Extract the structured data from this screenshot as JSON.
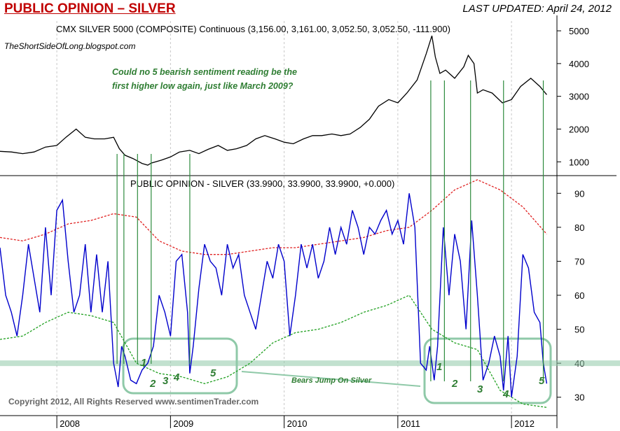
{
  "header": {
    "title": "PUBLIC OPINION – SILVER",
    "updated": "LAST UPDATED:  April 24, 2012"
  },
  "blog": "TheShortSideOfLong.blogspot.com",
  "question": "Could no 5 bearish sentiment reading be the\nfirst higher low again, just like March 2009?",
  "copyright": "Copyright 2012, All Rights Reserved  www.sentimenTrader.com",
  "bears_label": "Bears Jump On Silver",
  "colors": {
    "title": "#c00000",
    "price_line": "#000000",
    "sentiment_line": "#0000cc",
    "upper_band": "#e02020",
    "lower_band": "#20a020",
    "annotation": "#2e7d32",
    "highlight": "#8fc9a8"
  },
  "chart_data": [
    {
      "type": "line",
      "panel": "top",
      "title": "CMX SILVER 5000 (COMPOSITE) Continuous (3,156.00, 3,161.00, 3,052.50, 3,052.50, -111.900)",
      "y_ticks": [
        "5000",
        "4000",
        "3000",
        "2000",
        "1000"
      ],
      "ylim": [
        600,
        5300
      ],
      "xlim": [
        2007.5,
        2012.4
      ],
      "series": [
        {
          "x": [
            2007.5,
            2007.6,
            2007.7,
            2007.8,
            2007.9,
            2008.0,
            2008.08,
            2008.17,
            2008.25,
            2008.33,
            2008.42,
            2008.5,
            2008.55,
            2008.6,
            2008.67,
            2008.75,
            2008.8,
            2008.83,
            2008.92,
            2009.0,
            2009.08,
            2009.17,
            2009.25,
            2009.33,
            2009.42,
            2009.5,
            2009.58,
            2009.67,
            2009.75,
            2009.83,
            2009.92,
            2010.0,
            2010.08,
            2010.17,
            2010.25,
            2010.33,
            2010.42,
            2010.5,
            2010.58,
            2010.67,
            2010.75,
            2010.83,
            2010.92,
            2011.0,
            2011.08,
            2011.17,
            2011.25,
            2011.3,
            2011.33,
            2011.37,
            2011.42,
            2011.5,
            2011.58,
            2011.62,
            2011.67,
            2011.7,
            2011.75,
            2011.83,
            2011.92,
            2012.0,
            2012.08,
            2012.17,
            2012.25,
            2012.31
          ],
          "values": [
            1320,
            1300,
            1250,
            1300,
            1450,
            1500,
            1750,
            2000,
            1750,
            1700,
            1700,
            1750,
            1400,
            1200,
            1100,
            950,
            900,
            960,
            1050,
            1150,
            1300,
            1350,
            1250,
            1380,
            1500,
            1350,
            1400,
            1500,
            1700,
            1800,
            1700,
            1600,
            1550,
            1700,
            1800,
            1800,
            1850,
            1800,
            1850,
            2050,
            2300,
            2700,
            2900,
            2800,
            3100,
            3500,
            4300,
            4850,
            4200,
            3700,
            3800,
            3550,
            3900,
            4250,
            4000,
            3100,
            3200,
            3100,
            2800,
            2900,
            3300,
            3550,
            3300,
            3050
          ]
        }
      ]
    },
    {
      "type": "line",
      "panel": "bottom",
      "title": "PUBLIC OPINION - SILVER (33.9900, 33.9900, 33.9900, +0.000)",
      "y_ticks": [
        "90",
        "80",
        "70",
        "60",
        "50",
        "40",
        "30"
      ],
      "ylim": [
        25,
        95
      ],
      "xlim": [
        2007.5,
        2012.4
      ],
      "x_ticks": [
        "2008",
        "2009",
        "2010",
        "2011",
        "2012"
      ],
      "x_tick_values": [
        2008.0,
        2009.0,
        2010.0,
        2011.0,
        2012.0
      ],
      "series": [
        {
          "x": [
            2007.5,
            2007.55,
            2007.6,
            2007.65,
            2007.7,
            2007.75,
            2007.8,
            2007.85,
            2007.9,
            2007.95,
            2008.0,
            2008.05,
            2008.1,
            2008.15,
            2008.2,
            2008.25,
            2008.3,
            2008.35,
            2008.4,
            2008.45,
            2008.5,
            2008.54,
            2008.57,
            2008.6,
            2008.65,
            2008.7,
            2008.75,
            2008.8,
            2008.85,
            2008.9,
            2008.95,
            2009.0,
            2009.05,
            2009.1,
            2009.15,
            2009.17,
            2009.2,
            2009.25,
            2009.3,
            2009.35,
            2009.4,
            2009.45,
            2009.5,
            2009.55,
            2009.6,
            2009.65,
            2009.7,
            2009.75,
            2009.8,
            2009.85,
            2009.9,
            2009.95,
            2010.0,
            2010.05,
            2010.1,
            2010.15,
            2010.2,
            2010.25,
            2010.3,
            2010.35,
            2010.4,
            2010.45,
            2010.5,
            2010.55,
            2010.6,
            2010.65,
            2010.7,
            2010.75,
            2010.8,
            2010.85,
            2010.9,
            2010.95,
            2011.0,
            2011.05,
            2011.1,
            2011.15,
            2011.2,
            2011.25,
            2011.28,
            2011.32,
            2011.35,
            2011.4,
            2011.45,
            2011.5,
            2011.55,
            2011.6,
            2011.65,
            2011.7,
            2011.75,
            2011.8,
            2011.85,
            2011.9,
            2011.93,
            2011.97,
            2012.0,
            2012.05,
            2012.1,
            2012.15,
            2012.2,
            2012.25,
            2012.28,
            2012.31
          ],
          "values": [
            74,
            60,
            55,
            48,
            60,
            75,
            65,
            55,
            80,
            60,
            85,
            88,
            70,
            55,
            60,
            75,
            55,
            72,
            55,
            70,
            40,
            33,
            45,
            42,
            35,
            34,
            38,
            40,
            45,
            60,
            55,
            48,
            70,
            72,
            55,
            37,
            45,
            62,
            75,
            70,
            68,
            60,
            75,
            68,
            72,
            60,
            55,
            50,
            60,
            70,
            65,
            75,
            70,
            48,
            60,
            75,
            68,
            75,
            65,
            70,
            80,
            72,
            80,
            75,
            85,
            80,
            72,
            80,
            78,
            82,
            85,
            78,
            82,
            75,
            90,
            80,
            40,
            38,
            45,
            35,
            45,
            80,
            60,
            78,
            70,
            50,
            82,
            60,
            35,
            40,
            48,
            42,
            32,
            48,
            30,
            42,
            72,
            68,
            55,
            52,
            40,
            34
          ]
        },
        {
          "name": "upper band",
          "x": [
            2007.5,
            2007.7,
            2007.9,
            2008.1,
            2008.3,
            2008.5,
            2008.7,
            2008.9,
            2009.1,
            2009.3,
            2009.5,
            2009.7,
            2009.9,
            2010.1,
            2010.3,
            2010.5,
            2010.7,
            2010.9,
            2011.1,
            2011.3,
            2011.5,
            2011.7,
            2011.9,
            2012.1,
            2012.31
          ],
          "values": [
            77,
            76,
            78,
            81,
            82,
            84,
            83,
            76,
            73,
            72,
            72,
            73,
            74,
            74,
            75,
            76,
            77,
            79,
            80,
            85,
            91,
            94,
            91,
            86,
            78
          ]
        },
        {
          "name": "lower band",
          "x": [
            2007.5,
            2007.7,
            2007.9,
            2008.1,
            2008.3,
            2008.5,
            2008.7,
            2008.9,
            2009.1,
            2009.3,
            2009.5,
            2009.7,
            2009.9,
            2010.1,
            2010.3,
            2010.5,
            2010.7,
            2010.9,
            2011.1,
            2011.3,
            2011.5,
            2011.7,
            2011.9,
            2012.1,
            2012.31
          ],
          "values": [
            47,
            48,
            52,
            55,
            54,
            52,
            40,
            37,
            36,
            34,
            36,
            40,
            46,
            49,
            50,
            52,
            55,
            57,
            60,
            50,
            46,
            44,
            32,
            28,
            27
          ]
        }
      ],
      "annotations": {
        "markers_2009": [
          "1",
          "2",
          "3",
          "4",
          "5"
        ],
        "markers_2012": [
          "1",
          "2",
          "3",
          "4",
          "5"
        ],
        "highlight_level": 40
      }
    }
  ]
}
